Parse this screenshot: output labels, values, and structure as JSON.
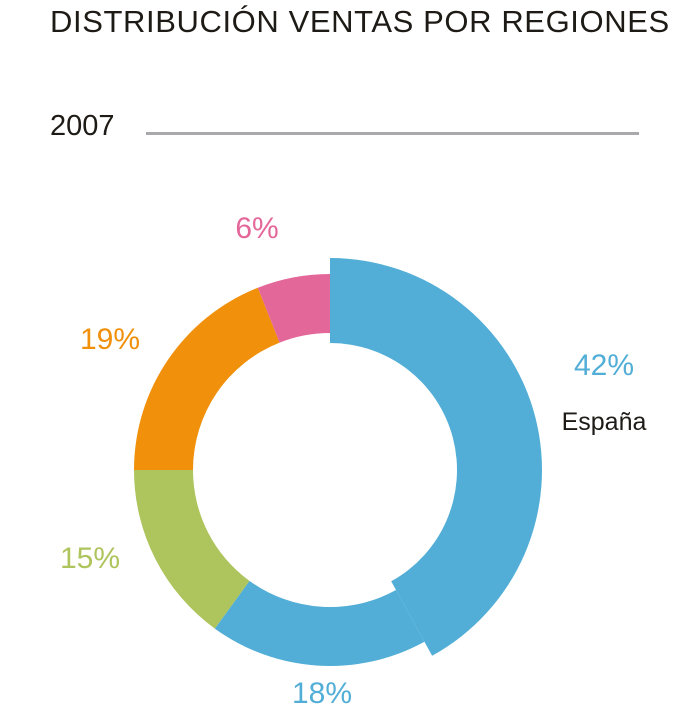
{
  "title": "DISTRIBUCIÓN VENTAS POR REGIONES",
  "year": "2007",
  "chart_data": {
    "type": "pie",
    "style": "donut",
    "title": "DISTRIBUCIÓN VENTAS POR REGIONES",
    "subtitle": "2007",
    "unit": "%",
    "slices": [
      {
        "value": 42,
        "label": "42%",
        "category": "España",
        "color": "#52aed6",
        "highlighted": true
      },
      {
        "value": 18,
        "label": "18%",
        "color": "#52aed6"
      },
      {
        "value": 15,
        "label": "15%",
        "color": "#aec45d"
      },
      {
        "value": 19,
        "label": "19%",
        "color": "#f0900b"
      },
      {
        "value": 6,
        "label": "6%",
        "color": "#e4679a"
      }
    ]
  }
}
